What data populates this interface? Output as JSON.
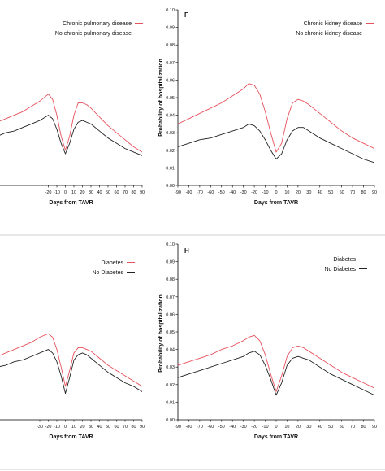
{
  "chart_data": [
    {
      "type": "line",
      "panel_label": "",
      "xlabel": "Days from TAVR",
      "ylabel": "",
      "xlim": [
        -90,
        90
      ],
      "ylim": [
        0,
        0.1
      ],
      "x_ticks": [
        "-20",
        "-10",
        "0",
        "10",
        "20",
        "30",
        "40",
        "50",
        "60",
        "70",
        "80",
        "90"
      ],
      "y_ticks": [],
      "series": [
        {
          "name": "Chronic pulmonary disease",
          "color": "#e8505b",
          "x": [
            -90,
            -80,
            -70,
            -60,
            -50,
            -40,
            -30,
            -20,
            -15,
            -10,
            -5,
            0,
            5,
            10,
            15,
            20,
            25,
            30,
            40,
            50,
            60,
            70,
            80,
            90
          ],
          "y": [
            0.034,
            0.036,
            0.038,
            0.04,
            0.042,
            0.045,
            0.048,
            0.052,
            0.049,
            0.04,
            0.028,
            0.02,
            0.028,
            0.04,
            0.047,
            0.047,
            0.046,
            0.044,
            0.039,
            0.034,
            0.03,
            0.026,
            0.022,
            0.019
          ]
        },
        {
          "name": "No chronic pulmonary disease",
          "color": "#222222",
          "x": [
            -90,
            -80,
            -70,
            -60,
            -50,
            -40,
            -30,
            -20,
            -15,
            -10,
            -5,
            0,
            5,
            10,
            15,
            20,
            25,
            30,
            40,
            50,
            60,
            70,
            80,
            90
          ],
          "y": [
            0.027,
            0.028,
            0.03,
            0.031,
            0.033,
            0.035,
            0.037,
            0.04,
            0.038,
            0.032,
            0.024,
            0.018,
            0.024,
            0.032,
            0.036,
            0.037,
            0.036,
            0.035,
            0.031,
            0.027,
            0.024,
            0.021,
            0.019,
            0.017
          ]
        }
      ],
      "legend": "top-right"
    },
    {
      "type": "line",
      "panel_label": "F",
      "xlabel": "Days from TAVR",
      "ylabel": "Probability of hospitalization",
      "xlim": [
        -90,
        90
      ],
      "ylim": [
        0,
        0.1
      ],
      "x_ticks": [
        "-90",
        "-80",
        "-70",
        "-60",
        "-50",
        "-40",
        "-30",
        "-20",
        "-10",
        "0",
        "10",
        "20",
        "30",
        "40",
        "50",
        "60",
        "70",
        "80",
        "90"
      ],
      "y_ticks": [
        "0.00",
        "0.01",
        "0.02",
        "0.03",
        "0.04",
        "0.05",
        "0.06",
        "0.07",
        "0.08",
        "0.09",
        "0.10"
      ],
      "series": [
        {
          "name": "Chronic kidney disease",
          "color": "#e8505b",
          "x": [
            -90,
            -80,
            -70,
            -60,
            -50,
            -40,
            -30,
            -25,
            -20,
            -15,
            -10,
            -5,
            0,
            5,
            10,
            15,
            20,
            25,
            30,
            40,
            50,
            60,
            70,
            80,
            90
          ],
          "y": [
            0.035,
            0.038,
            0.041,
            0.044,
            0.047,
            0.051,
            0.055,
            0.058,
            0.057,
            0.052,
            0.042,
            0.03,
            0.019,
            0.024,
            0.038,
            0.047,
            0.049,
            0.048,
            0.046,
            0.041,
            0.036,
            0.031,
            0.027,
            0.024,
            0.021
          ]
        },
        {
          "name": "No chronic kidney disease",
          "color": "#222222",
          "x": [
            -90,
            -80,
            -70,
            -60,
            -50,
            -40,
            -30,
            -25,
            -20,
            -15,
            -10,
            -5,
            0,
            5,
            10,
            15,
            20,
            25,
            30,
            40,
            50,
            60,
            70,
            80,
            90
          ],
          "y": [
            0.022,
            0.024,
            0.026,
            0.027,
            0.029,
            0.031,
            0.033,
            0.035,
            0.034,
            0.031,
            0.026,
            0.02,
            0.015,
            0.018,
            0.026,
            0.031,
            0.033,
            0.033,
            0.031,
            0.027,
            0.024,
            0.021,
            0.018,
            0.015,
            0.013
          ]
        }
      ],
      "legend": "top-right"
    },
    {
      "type": "line",
      "panel_label": "",
      "xlabel": "Days from TAVR",
      "ylabel": "",
      "xlim": [
        -90,
        90
      ],
      "ylim": [
        0,
        0.1
      ],
      "x_ticks": [
        "-30",
        "-20",
        "-10",
        "0",
        "10",
        "20",
        "30",
        "40",
        "50",
        "60",
        "70",
        "80",
        "90"
      ],
      "y_ticks": [],
      "series": [
        {
          "name": "Diabetes",
          "color": "#e8505b",
          "x": [
            -90,
            -80,
            -70,
            -60,
            -50,
            -40,
            -30,
            -20,
            -15,
            -10,
            -5,
            0,
            5,
            10,
            15,
            20,
            25,
            30,
            40,
            50,
            60,
            70,
            80,
            90
          ],
          "y": [
            0.034,
            0.036,
            0.038,
            0.04,
            0.042,
            0.044,
            0.047,
            0.049,
            0.047,
            0.04,
            0.03,
            0.019,
            0.028,
            0.038,
            0.041,
            0.041,
            0.04,
            0.039,
            0.035,
            0.031,
            0.028,
            0.025,
            0.022,
            0.019
          ]
        },
        {
          "name": "No Diabetes",
          "color": "#222222",
          "x": [
            -90,
            -80,
            -70,
            -60,
            -50,
            -40,
            -30,
            -20,
            -15,
            -10,
            -5,
            0,
            5,
            10,
            15,
            20,
            25,
            30,
            40,
            50,
            60,
            70,
            80,
            90
          ],
          "y": [
            0.028,
            0.03,
            0.031,
            0.033,
            0.034,
            0.036,
            0.038,
            0.04,
            0.038,
            0.033,
            0.025,
            0.015,
            0.024,
            0.034,
            0.037,
            0.038,
            0.037,
            0.035,
            0.031,
            0.027,
            0.024,
            0.021,
            0.019,
            0.016
          ]
        }
      ],
      "legend": "top-right"
    },
    {
      "type": "line",
      "panel_label": "H",
      "xlabel": "Days from TAVR",
      "ylabel": "Probability of hospitalization",
      "xlim": [
        -90,
        90
      ],
      "ylim": [
        0,
        0.1
      ],
      "x_ticks": [
        "-90",
        "-80",
        "-70",
        "-60",
        "-50",
        "-40",
        "-30",
        "-20",
        "-10",
        "0",
        "10",
        "20",
        "30",
        "40",
        "50",
        "60",
        "70",
        "80",
        "90"
      ],
      "y_ticks": [
        "0.00",
        "0.01",
        "0.02",
        "0.03",
        "0.04",
        "0.05",
        "0.06",
        "0.07",
        "0.08",
        "0.09",
        "0.10"
      ],
      "series": [
        {
          "name": "Diabetes",
          "color": "#e8505b",
          "x": [
            -90,
            -80,
            -70,
            -60,
            -50,
            -40,
            -30,
            -25,
            -20,
            -15,
            -10,
            -5,
            0,
            5,
            10,
            15,
            20,
            25,
            30,
            40,
            50,
            60,
            70,
            80,
            90
          ],
          "y": [
            0.031,
            0.033,
            0.035,
            0.037,
            0.04,
            0.042,
            0.045,
            0.047,
            0.048,
            0.045,
            0.037,
            0.026,
            0.016,
            0.025,
            0.036,
            0.041,
            0.042,
            0.041,
            0.039,
            0.035,
            0.031,
            0.027,
            0.024,
            0.021,
            0.018
          ]
        },
        {
          "name": "No Diabetes",
          "color": "#222222",
          "x": [
            -90,
            -80,
            -70,
            -60,
            -50,
            -40,
            -30,
            -25,
            -20,
            -15,
            -10,
            -5,
            0,
            5,
            10,
            15,
            20,
            25,
            30,
            40,
            50,
            60,
            70,
            80,
            90
          ],
          "y": [
            0.024,
            0.026,
            0.028,
            0.03,
            0.032,
            0.034,
            0.036,
            0.038,
            0.039,
            0.037,
            0.031,
            0.023,
            0.014,
            0.021,
            0.031,
            0.035,
            0.036,
            0.035,
            0.034,
            0.03,
            0.026,
            0.023,
            0.02,
            0.017,
            0.014
          ]
        }
      ],
      "legend": "top-right"
    }
  ]
}
